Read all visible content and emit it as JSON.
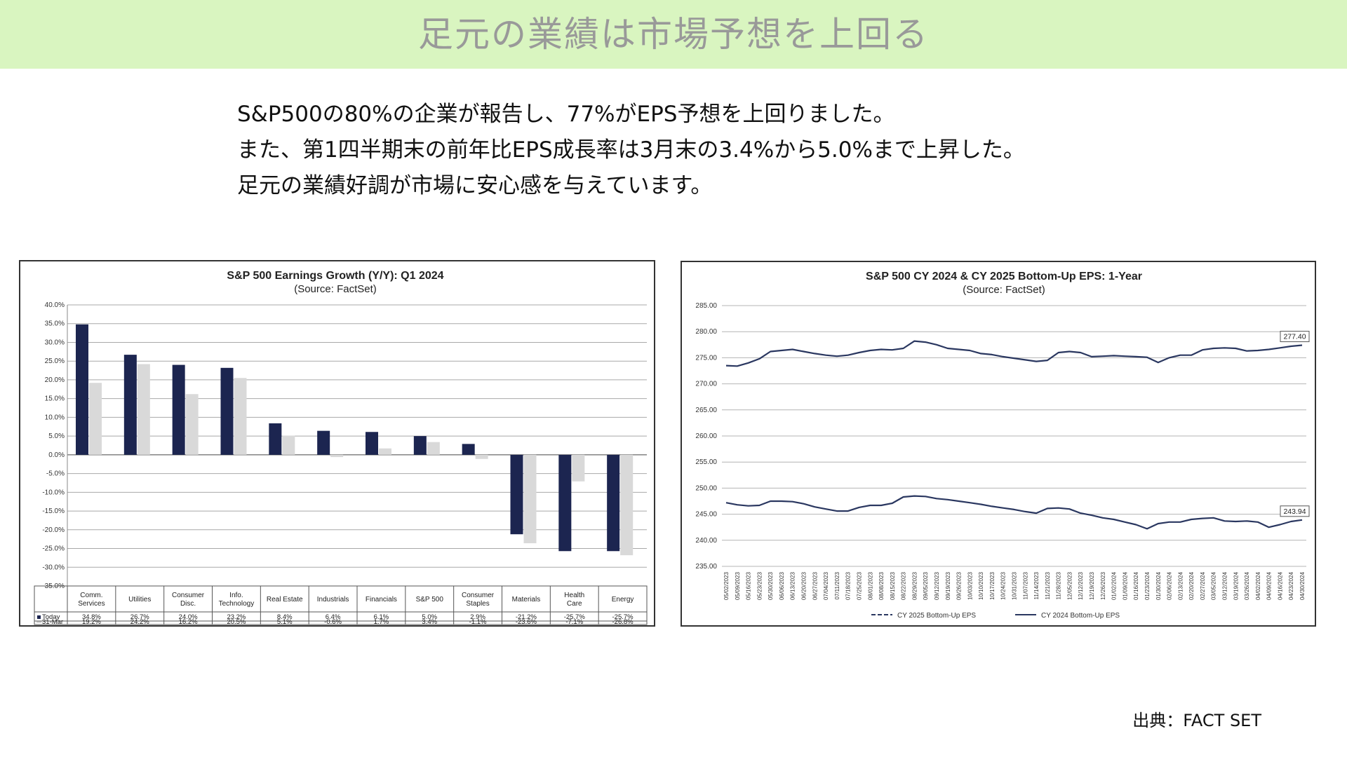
{
  "slide": {
    "title": "足元の業績は市場予想を上回る",
    "body_lines": [
      "S&P500の80%の企業が報告し、77%がEPS予想を上回りました。",
      "また、第1四半期末の前年比EPS成長率は3月末の3.4%から5.0%まで上昇した。",
      "足元の業績好調が市場に安心感を与えています。"
    ],
    "source_note": "出典：FACT SET"
  },
  "colors": {
    "header_bg": "#d9f5c0",
    "today": "#1c2550",
    "mar31": "#d9d9d9",
    "line": "#2a3760"
  },
  "chart_data": [
    {
      "type": "bar",
      "title": "S&P 500 Earnings Growth (Y/Y): Q1 2024",
      "subtitle": "(Source: FactSet)",
      "categories": [
        [
          "Comm.",
          "Services"
        ],
        [
          "Utilities"
        ],
        [
          "Consumer",
          "Disc."
        ],
        [
          "Info.",
          "Technology"
        ],
        [
          "Real Estate"
        ],
        [
          "Industrials"
        ],
        [
          "Financials"
        ],
        [
          "S&P 500"
        ],
        [
          "Consumer",
          "Staples"
        ],
        [
          "Materials"
        ],
        [
          "Health",
          "Care"
        ],
        [
          "Energy"
        ]
      ],
      "series": [
        {
          "name": "Today",
          "values": [
            34.8,
            26.7,
            24.0,
            23.2,
            8.4,
            6.4,
            6.1,
            5.0,
            2.9,
            -21.2,
            -25.7,
            -25.7
          ],
          "labels": [
            "34.8%",
            "26.7%",
            "24.0%",
            "23.2%",
            "8.4%",
            "6.4%",
            "6.1%",
            "5.0%",
            "2.9%",
            "-21.2%",
            "-25.7%",
            "-25.7%"
          ]
        },
        {
          "name": "31-Mar",
          "values": [
            19.2,
            24.2,
            16.2,
            20.5,
            5.1,
            -0.6,
            1.7,
            3.4,
            -1.1,
            -23.6,
            -7.1,
            -26.8
          ],
          "labels": [
            "19.2%",
            "24.2%",
            "16.2%",
            "20.5%",
            "5.1%",
            "-0.6%",
            "1.7%",
            "3.4%",
            "-1.1%",
            "-23.6%",
            "-7.1%",
            "-26.8%"
          ]
        }
      ],
      "ylim": [
        -35,
        40
      ],
      "yticks": [
        "40.0%",
        "35.0%",
        "30.0%",
        "25.0%",
        "20.0%",
        "15.0%",
        "10.0%",
        "5.0%",
        "0.0%",
        "-5.0%",
        "-10.0%",
        "-15.0%",
        "-20.0%",
        "-25.0%",
        "-30.0%",
        "-35.0%"
      ],
      "grid": true,
      "legend": "data table below chart"
    },
    {
      "type": "line",
      "title": "S&P 500 CY 2024 & CY 2025 Bottom-Up  EPS: 1-Year",
      "subtitle": "(Source: FactSet)",
      "ylim": [
        235,
        285
      ],
      "yticks": [
        "285.00",
        "280.00",
        "275.00",
        "270.00",
        "265.00",
        "260.00",
        "255.00",
        "250.00",
        "245.00",
        "240.00",
        "235.00"
      ],
      "x_labels": [
        "05/02/2023",
        "05/09/2023",
        "05/16/2023",
        "05/23/2023",
        "05/30/2023",
        "06/06/2023",
        "06/13/2023",
        "06/20/2023",
        "06/27/2023",
        "07/04/2023",
        "07/11/2023",
        "07/18/2023",
        "07/25/2023",
        "08/01/2023",
        "08/08/2023",
        "08/15/2023",
        "08/22/2023",
        "08/29/2023",
        "09/05/2023",
        "09/12/2023",
        "09/19/2023",
        "09/26/2023",
        "10/03/2023",
        "10/10/2023",
        "10/17/2023",
        "10/24/2023",
        "10/31/2023",
        "11/07/2023",
        "11/14/2023",
        "11/21/2023",
        "11/28/2023",
        "12/05/2023",
        "12/12/2023",
        "12/19/2023",
        "12/26/2023",
        "01/02/2024",
        "01/09/2024",
        "01/16/2024",
        "01/23/2024",
        "01/30/2024",
        "02/06/2024",
        "02/13/2024",
        "02/20/2024",
        "02/27/2024",
        "03/05/2024",
        "03/12/2024",
        "03/19/2024",
        "03/26/2024",
        "04/02/2024",
        "04/09/2024",
        "04/16/2024",
        "04/23/2024",
        "04/30/2024"
      ],
      "series": [
        {
          "name": "CY 2025 Bottom-Up EPS",
          "style": "dashed",
          "end_label": "277.40",
          "values": [
            273.5,
            273.4,
            274.0,
            274.8,
            276.2,
            276.4,
            276.6,
            276.2,
            275.8,
            275.5,
            275.3,
            275.5,
            276.0,
            276.4,
            276.6,
            276.5,
            276.8,
            278.2,
            278.0,
            277.5,
            276.8,
            276.6,
            276.4,
            275.8,
            275.6,
            275.2,
            274.9,
            274.6,
            274.3,
            274.5,
            276.0,
            276.2,
            276.0,
            275.2,
            275.3,
            275.4,
            275.3,
            275.2,
            275.1,
            274.1,
            275.0,
            275.5,
            275.5,
            276.5,
            276.8,
            276.9,
            276.8,
            276.3,
            276.4,
            276.6,
            276.9,
            277.2,
            277.4
          ]
        },
        {
          "name": "CY 2024 Bottom-Up EPS",
          "style": "solid",
          "end_label": "243.94",
          "values": [
            247.2,
            246.8,
            246.6,
            246.7,
            247.5,
            247.5,
            247.4,
            247.0,
            246.4,
            246.0,
            245.6,
            245.6,
            246.3,
            246.7,
            246.7,
            247.1,
            248.3,
            248.5,
            248.4,
            248.0,
            247.8,
            247.5,
            247.2,
            246.9,
            246.5,
            246.2,
            245.9,
            245.5,
            245.2,
            246.1,
            246.2,
            246.0,
            245.2,
            244.8,
            244.3,
            244.0,
            243.5,
            243.0,
            242.2,
            243.2,
            243.5,
            243.5,
            244.0,
            244.2,
            244.3,
            243.7,
            243.6,
            243.7,
            243.5,
            242.5,
            243.0,
            243.6,
            243.9
          ]
        }
      ],
      "grid": true,
      "legend": "bottom"
    }
  ]
}
